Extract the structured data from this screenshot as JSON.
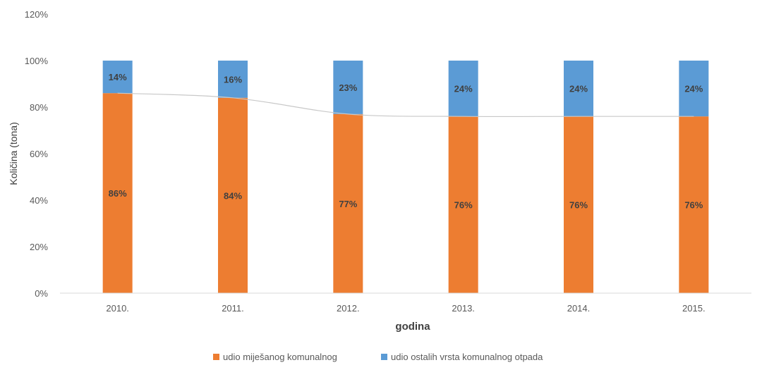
{
  "chart_data": {
    "type": "bar",
    "stacked": true,
    "categories": [
      "2010.",
      "2011.",
      "2012.",
      "2013.",
      "2014.",
      "2015."
    ],
    "series": [
      {
        "name": "udio miješanog komunalnog",
        "values": [
          86,
          84,
          77,
          76,
          76,
          76
        ],
        "labels": [
          "86%",
          "84%",
          "77%",
          "76%",
          "76%",
          "76%"
        ],
        "color": "#ED7D31"
      },
      {
        "name": "udio ostalih vrsta komunalnog otpada",
        "values": [
          14,
          16,
          23,
          24,
          24,
          24
        ],
        "labels": [
          "14%",
          "16%",
          "23%",
          "24%",
          "24%",
          "24%"
        ],
        "color": "#5B9BD5"
      }
    ],
    "xlabel": "godina",
    "ylabel": "Količina (tona)",
    "ylim": [
      0,
      120
    ],
    "yticks": [
      0,
      20,
      40,
      60,
      80,
      100,
      120
    ],
    "ytick_labels": [
      "0%",
      "20%",
      "40%",
      "60%",
      "80%",
      "100%",
      "120%"
    ],
    "trend_line": true,
    "grid": false,
    "legend": "bottom-center"
  }
}
